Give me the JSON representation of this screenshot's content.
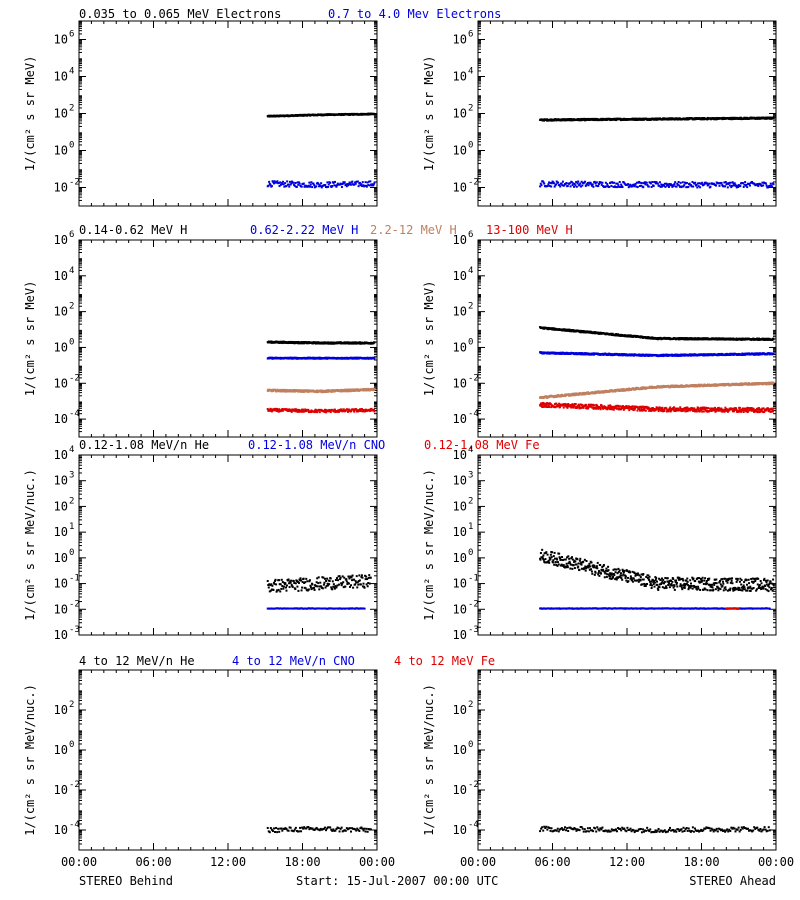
{
  "colors": {
    "black": "#000000",
    "blue": "#0000dd",
    "tan": "#c08060",
    "red": "#dd0000"
  },
  "footer": {
    "left": "STEREO Behind",
    "center": "Start: 15-Jul-2007 00:00 UTC",
    "right": "STEREO Ahead",
    "time_ticks": [
      "00:00",
      "06:00",
      "12:00",
      "18:00",
      "00:00"
    ]
  },
  "chart_data": [
    {
      "type": "scatter",
      "row": 0,
      "col": 0,
      "legend": [
        {
          "text": "0.035 to 0.065 MeV Electrons",
          "color": "#000000"
        },
        {
          "text": "0.7 to 4.0 Mev Electrons",
          "color": "#0000dd"
        }
      ],
      "ylabel": "1/(cm² s sr MeV)",
      "yscale": "log",
      "ylim_exp": [
        -3,
        7
      ],
      "yticks": [
        {
          "base": "10",
          "exp": "6",
          "e": 6
        },
        {
          "base": "10",
          "exp": "4",
          "e": 4
        },
        {
          "base": "10",
          "exp": "2",
          "e": 2
        },
        {
          "base": "10",
          "exp": "0",
          "e": 0
        },
        {
          "base": "10",
          "exp": "-2",
          "e": -2
        }
      ],
      "xlim_hours": [
        0,
        24
      ],
      "series": [
        {
          "color": "#000000",
          "x_range": [
            15.2,
            23.8
          ],
          "log10": [
            1.85,
            1.93,
            1.97
          ],
          "scatter": 0.03,
          "density": 3
        },
        {
          "color": "#0000dd",
          "x_range": [
            15.2,
            23.8
          ],
          "log10": [
            -1.8,
            -1.85,
            -1.8
          ],
          "scatter": 0.15,
          "density": 1.5
        }
      ]
    },
    {
      "type": "scatter",
      "row": 0,
      "col": 1,
      "ylabel": "1/(cm² s sr MeV)",
      "yscale": "log",
      "ylim_exp": [
        -3,
        7
      ],
      "yticks": [
        {
          "base": "10",
          "exp": "6",
          "e": 6
        },
        {
          "base": "10",
          "exp": "4",
          "e": 4
        },
        {
          "base": "10",
          "exp": "2",
          "e": 2
        },
        {
          "base": "10",
          "exp": "0",
          "e": 0
        },
        {
          "base": "10",
          "exp": "-2",
          "e": -2
        }
      ],
      "xlim_hours": [
        0,
        24
      ],
      "series": [
        {
          "color": "#000000",
          "x_range": [
            5.0,
            23.8
          ],
          "log10": [
            1.65,
            1.7,
            1.75
          ],
          "scatter": 0.04,
          "density": 3
        },
        {
          "color": "#0000dd",
          "x_range": [
            5.0,
            23.8
          ],
          "log10": [
            -1.8,
            -1.85,
            -1.85
          ],
          "scatter": 0.15,
          "density": 1.5
        }
      ]
    },
    {
      "type": "scatter",
      "row": 1,
      "col": 0,
      "legend": [
        {
          "text": "0.14-0.62 MeV H",
          "color": "#000000"
        },
        {
          "text": "0.62-2.22 MeV H",
          "color": "#0000dd"
        },
        {
          "text": "2.2-12 MeV H",
          "color": "#c08060"
        },
        {
          "text": "13-100 MeV H",
          "color": "#dd0000"
        }
      ],
      "ylabel": "1/(cm² s sr MeV)",
      "yscale": "log",
      "ylim_exp": [
        -5,
        6
      ],
      "yticks": [
        {
          "base": "10",
          "exp": "6",
          "e": 6
        },
        {
          "base": "10",
          "exp": "4",
          "e": 4
        },
        {
          "base": "10",
          "exp": "2",
          "e": 2
        },
        {
          "base": "10",
          "exp": "0",
          "e": 0
        },
        {
          "base": "10",
          "exp": "-2",
          "e": -2
        },
        {
          "base": "10",
          "exp": "-4",
          "e": -4
        }
      ],
      "xlim_hours": [
        0,
        24
      ],
      "series": [
        {
          "color": "#000000",
          "x_range": [
            15.2,
            23.8
          ],
          "log10": [
            0.3,
            0.25,
            0.25
          ],
          "scatter": 0.04,
          "density": 3
        },
        {
          "color": "#0000dd",
          "x_range": [
            15.2,
            23.8
          ],
          "log10": [
            -0.6,
            -0.6,
            -0.6
          ],
          "scatter": 0.03,
          "density": 3
        },
        {
          "color": "#c08060",
          "x_range": [
            15.2,
            23.8
          ],
          "log10": [
            -2.4,
            -2.45,
            -2.35
          ],
          "scatter": 0.05,
          "density": 3
        },
        {
          "color": "#dd0000",
          "x_range": [
            15.2,
            23.8
          ],
          "log10": [
            -3.5,
            -3.55,
            -3.5
          ],
          "scatter": 0.08,
          "density": 2
        }
      ]
    },
    {
      "type": "scatter",
      "row": 1,
      "col": 1,
      "ylabel": "1/(cm² s sr MeV)",
      "yscale": "log",
      "ylim_exp": [
        -5,
        6
      ],
      "yticks": [
        {
          "base": "10",
          "exp": "6",
          "e": 6
        },
        {
          "base": "10",
          "exp": "4",
          "e": 4
        },
        {
          "base": "10",
          "exp": "2",
          "e": 2
        },
        {
          "base": "10",
          "exp": "0",
          "e": 0
        },
        {
          "base": "10",
          "exp": "-2",
          "e": -2
        },
        {
          "base": "10",
          "exp": "-4",
          "e": -4
        }
      ],
      "xlim_hours": [
        0,
        24
      ],
      "series": [
        {
          "color": "#000000",
          "x_range": [
            5.0,
            23.8
          ],
          "log10": [
            1.1,
            0.5,
            0.45
          ],
          "scatter": 0.04,
          "density": 3
        },
        {
          "color": "#0000dd",
          "x_range": [
            5.0,
            23.8
          ],
          "log10": [
            -0.3,
            -0.45,
            -0.35
          ],
          "scatter": 0.04,
          "density": 3
        },
        {
          "color": "#c08060",
          "x_range": [
            5.0,
            23.8
          ],
          "log10": [
            -2.8,
            -2.2,
            -2.0
          ],
          "scatter": 0.05,
          "density": 3
        },
        {
          "color": "#dd0000",
          "x_range": [
            5.0,
            23.8
          ],
          "log10": [
            -3.2,
            -3.45,
            -3.5
          ],
          "scatter": 0.12,
          "density": 2.5
        }
      ]
    },
    {
      "type": "scatter",
      "row": 2,
      "col": 0,
      "legend": [
        {
          "text": "0.12-1.08 MeV/n He",
          "color": "#000000"
        },
        {
          "text": "0.12-1.08 MeV/n CNO",
          "color": "#0000dd"
        },
        {
          "text": "0.12-1.08 MeV Fe",
          "color": "#dd0000"
        }
      ],
      "ylabel": "1/(cm² s sr MeV/nuc.)",
      "yscale": "log",
      "ylim_exp": [
        -3,
        4
      ],
      "yticks": [
        {
          "base": "10",
          "exp": "4",
          "e": 4
        },
        {
          "base": "10",
          "exp": "3",
          "e": 3
        },
        {
          "base": "10",
          "exp": "2",
          "e": 2
        },
        {
          "base": "10",
          "exp": "1",
          "e": 1
        },
        {
          "base": "10",
          "exp": "0",
          "e": 0
        },
        {
          "base": "10",
          "exp": "-1",
          "e": -1
        },
        {
          "base": "10",
          "exp": "-2",
          "e": -2
        },
        {
          "base": "10",
          "exp": "-3",
          "e": -3
        }
      ],
      "xlim_hours": [
        0,
        24
      ],
      "series": [
        {
          "color": "#000000",
          "x_range": [
            15.2,
            23.5
          ],
          "log10": [
            -1.1,
            -1.0,
            -0.9
          ],
          "scatter": 0.25,
          "density": 2
        },
        {
          "color": "#0000dd",
          "x_range": [
            15.2,
            23.0
          ],
          "log10": [
            -1.97,
            -1.97,
            -1.97
          ],
          "scatter": 0.01,
          "density": 1
        }
      ]
    },
    {
      "type": "scatter",
      "row": 2,
      "col": 1,
      "ylabel": "1/(cm² s sr MeV/nuc.)",
      "yscale": "log",
      "ylim_exp": [
        -3,
        4
      ],
      "yticks": [
        {
          "base": "10",
          "exp": "4",
          "e": 4
        },
        {
          "base": "10",
          "exp": "3",
          "e": 3
        },
        {
          "base": "10",
          "exp": "2",
          "e": 2
        },
        {
          "base": "10",
          "exp": "1",
          "e": 1
        },
        {
          "base": "10",
          "exp": "0",
          "e": 0
        },
        {
          "base": "10",
          "exp": "-1",
          "e": -1
        },
        {
          "base": "10",
          "exp": "-2",
          "e": -2
        },
        {
          "base": "10",
          "exp": "-3",
          "e": -3
        }
      ],
      "xlim_hours": [
        0,
        24
      ],
      "series": [
        {
          "color": "#000000",
          "x_range": [
            5.0,
            23.8
          ],
          "log10": [
            0.1,
            -1.0,
            -1.05
          ],
          "scatter": 0.25,
          "density": 2.5
        },
        {
          "color": "#0000dd",
          "x_range": [
            5.0,
            23.5
          ],
          "log10": [
            -1.97,
            -1.97,
            -1.97
          ],
          "scatter": 0.01,
          "density": 1.2
        },
        {
          "color": "#dd0000",
          "x_range": [
            20.0,
            21.0
          ],
          "log10": [
            -1.97,
            -1.97,
            -1.97
          ],
          "scatter": 0.01,
          "density": 1
        }
      ]
    },
    {
      "type": "scatter",
      "row": 3,
      "col": 0,
      "legend": [
        {
          "text": "4 to 12 MeV/n He",
          "color": "#000000"
        },
        {
          "text": "4 to 12 MeV/n CNO",
          "color": "#0000dd"
        },
        {
          "text": "4 to 12 MeV Fe",
          "color": "#dd0000"
        }
      ],
      "ylabel": "1/(cm² s sr MeV/nuc.)",
      "yscale": "log",
      "ylim_exp": [
        -5,
        4
      ],
      "yticks": [
        {
          "base": "10",
          "exp": "2",
          "e": 2
        },
        {
          "base": "10",
          "exp": "0",
          "e": 0
        },
        {
          "base": "10",
          "exp": "-2",
          "e": -2
        },
        {
          "base": "10",
          "exp": "-4",
          "e": -4
        }
      ],
      "xlim_hours": [
        0,
        24
      ],
      "series": [
        {
          "color": "#000000",
          "x_range": [
            15.2,
            23.5
          ],
          "log10": [
            -4.0,
            -3.95,
            -4.0
          ],
          "scatter": 0.12,
          "density": 1
        }
      ]
    },
    {
      "type": "scatter",
      "row": 3,
      "col": 1,
      "ylabel": "1/(cm² s sr MeV/nuc.)",
      "yscale": "log",
      "ylim_exp": [
        -5,
        4
      ],
      "yticks": [
        {
          "base": "10",
          "exp": "2",
          "e": 2
        },
        {
          "base": "10",
          "exp": "0",
          "e": 0
        },
        {
          "base": "10",
          "exp": "-2",
          "e": -2
        },
        {
          "base": "10",
          "exp": "-4",
          "e": -4
        }
      ],
      "xlim_hours": [
        0,
        24
      ],
      "series": [
        {
          "color": "#000000",
          "x_range": [
            5.0,
            23.5
          ],
          "log10": [
            -3.95,
            -4.0,
            -3.95
          ],
          "scatter": 0.12,
          "density": 1
        }
      ]
    }
  ]
}
